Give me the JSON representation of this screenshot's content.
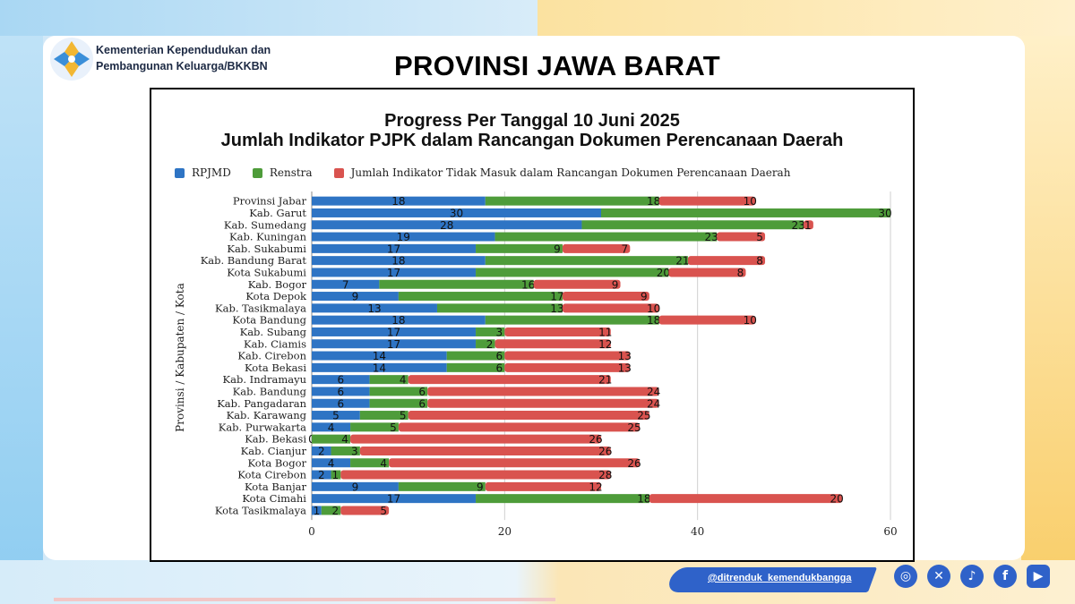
{
  "header": {
    "org_line1": "Kementerian Kependudukan dan",
    "org_line2": "Pembangunan Keluarga/BKKBN",
    "page_title": "PROVINSI JAWA BARAT"
  },
  "social": {
    "handle": "@ditrenduk_kemendukbangga",
    "icons": [
      "instagram-icon",
      "x-icon",
      "tiktok-icon",
      "facebook-icon",
      "youtube-icon"
    ]
  },
  "colors": {
    "rpjmd": "#2e74c4",
    "renstra": "#4e9c3a",
    "tidak_masuk": "#d9534f"
  },
  "chart_data": {
    "type": "bar",
    "orientation": "horizontal",
    "stacked": true,
    "title_line1": "Progress Per Tanggal 10 Juni 2025",
    "title_line2": "Jumlah Indikator PJPK dalam Rancangan Dokumen Perencanaan Daerah",
    "ylabel": "Provinsi / Kabupaten / Kota",
    "xlabel": "",
    "xlim": [
      0,
      60
    ],
    "xticks": [
      0,
      20,
      40,
      60
    ],
    "grid": true,
    "legend_position": "top",
    "categories": [
      "Provinsi Jabar",
      "Kab. Garut",
      "Kab. Sumedang",
      "Kab. Kuningan",
      "Kab. Sukabumi",
      "Kab. Bandung Barat",
      "Kota Sukabumi",
      "Kab. Bogor",
      "Kota Depok",
      "Kab. Tasikmalaya",
      "Kota Bandung",
      "Kab. Subang",
      "Kab. Ciamis",
      "Kab. Cirebon",
      "Kota Bekasi",
      "Kab. Indramayu",
      "Kab. Bandung",
      "Kab. Pangadaran",
      "Kab. Karawang",
      "Kab. Purwakarta",
      "Kab. Bekasi",
      "Kab. Cianjur",
      "Kota Bogor",
      "Kota Cirebon",
      "Kota Banjar",
      "Kota Cimahi",
      "Kota Tasikmalaya"
    ],
    "series": [
      {
        "name": "RPJMD",
        "values": [
          18,
          30,
          28,
          19,
          17,
          18,
          17,
          7,
          9,
          13,
          18,
          17,
          17,
          14,
          14,
          6,
          6,
          6,
          5,
          4,
          0,
          2,
          4,
          2,
          9,
          17,
          1
        ]
      },
      {
        "name": "Renstra",
        "values": [
          18,
          30,
          23,
          23,
          9,
          21,
          20,
          16,
          17,
          13,
          18,
          3,
          2,
          6,
          6,
          4,
          6,
          6,
          5,
          5,
          4,
          3,
          4,
          1,
          9,
          18,
          2
        ]
      },
      {
        "name": "Jumlah Indikator Tidak Masuk dalam Rancangan Dokumen Perencanaan Daerah",
        "values": [
          10,
          0,
          1,
          5,
          7,
          8,
          8,
          9,
          9,
          10,
          10,
          11,
          12,
          13,
          13,
          21,
          24,
          24,
          25,
          25,
          26,
          26,
          26,
          28,
          12,
          20,
          5
        ]
      }
    ]
  }
}
